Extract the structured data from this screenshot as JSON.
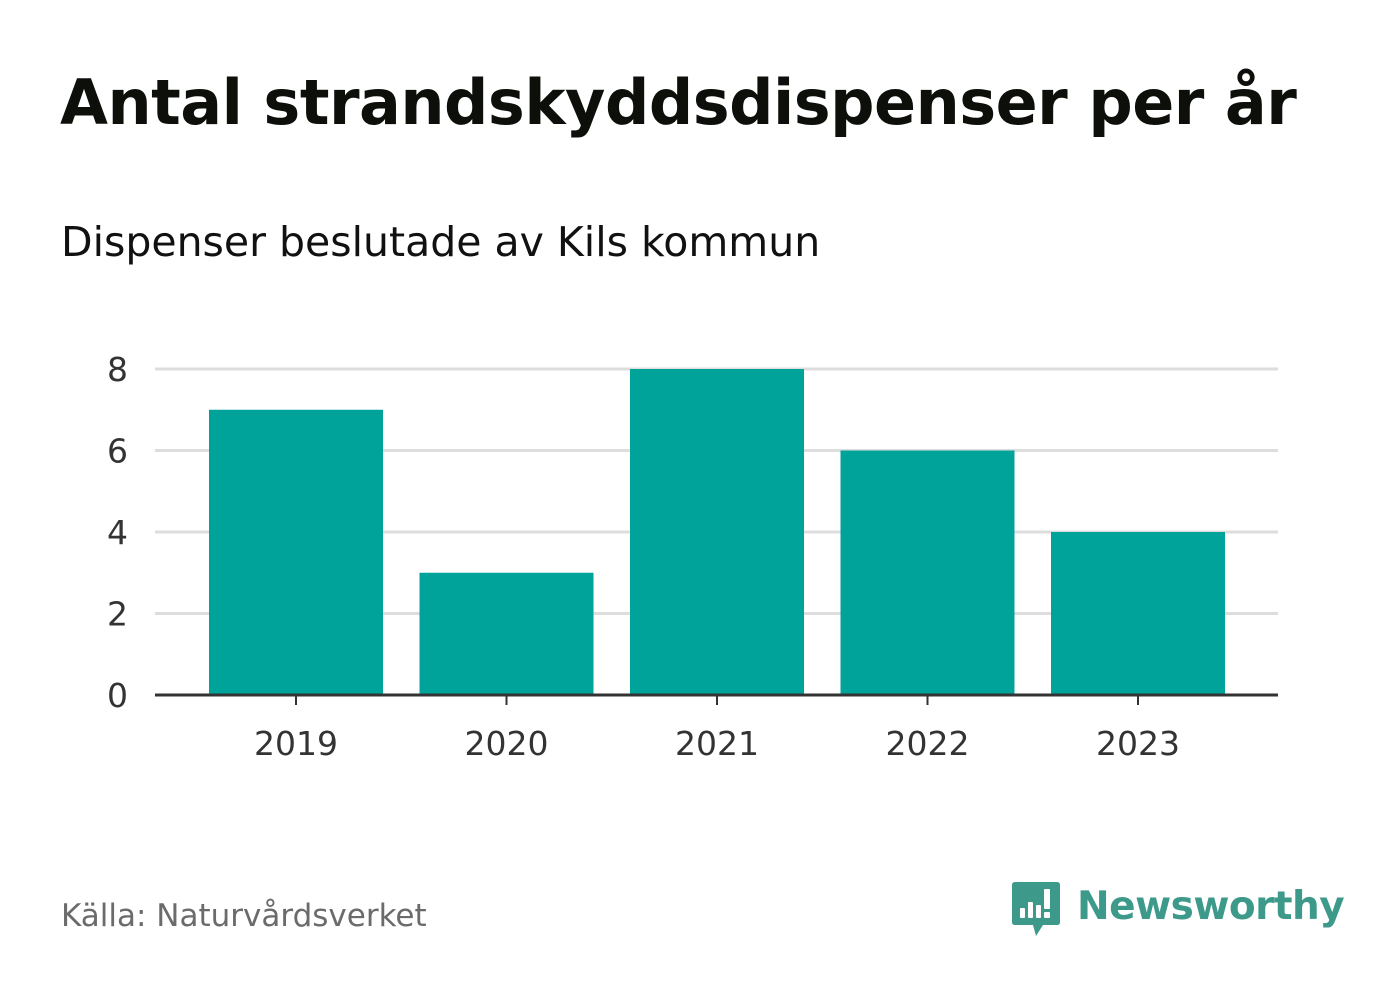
{
  "title": "Antal strandskyddsdispenser per år",
  "subtitle": "Dispenser beslutade av Kils kommun",
  "source": "Källa: Naturvårdsverket",
  "brand": {
    "name": "Newsworthy",
    "color": "#3d9a8b",
    "icon": "newsworthy-logo-icon"
  },
  "colors": {
    "bar": "#00a39a",
    "grid": "#dddddd",
    "axis": "#333333"
  },
  "chart_data": {
    "type": "bar",
    "title": "Antal strandskyddsdispenser per år",
    "subtitle": "Dispenser beslutade av Kils kommun",
    "xlabel": "",
    "ylabel": "",
    "categories": [
      "2019",
      "2020",
      "2021",
      "2022",
      "2023"
    ],
    "values": [
      7,
      3,
      8,
      6,
      4
    ],
    "ylim": [
      0,
      8
    ],
    "yticks": [
      "0",
      "2",
      "4",
      "6",
      "8"
    ],
    "grid": true,
    "legend": "none"
  }
}
